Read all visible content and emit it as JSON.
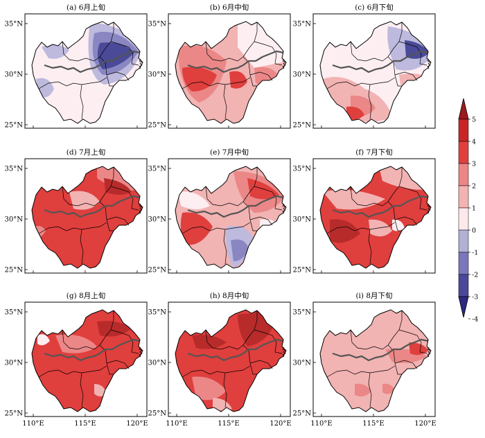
{
  "figure": {
    "panels": [
      {
        "id": "a",
        "title": "(a) 6月上旬"
      },
      {
        "id": "b",
        "title": "(b) 6月中旬"
      },
      {
        "id": "c",
        "title": "(c) 6月下旬"
      },
      {
        "id": "d",
        "title": "(d) 7月上旬"
      },
      {
        "id": "e",
        "title": "(e) 7月中旬"
      },
      {
        "id": "f",
        "title": "(f) 7月下旬"
      },
      {
        "id": "g",
        "title": "(g) 8月上旬"
      },
      {
        "id": "h",
        "title": "(h) 8月中旬"
      },
      {
        "id": "i",
        "title": "(i) 8月下旬"
      }
    ],
    "lat_ticks": [
      "35°N",
      "30°N",
      "25°N"
    ],
    "lon_ticks": [
      "110°E",
      "115°E",
      "120°E"
    ],
    "colorbar": {
      "ticks": [
        "5",
        "4",
        "3",
        "2",
        "1",
        "0",
        "-1",
        "-2",
        "-3",
        "-4"
      ],
      "colors": [
        "#9c1b1b",
        "#c82626",
        "#e0403c",
        "#ec8585",
        "#f4b3b3",
        "#fde9ec",
        "#b3b0d6",
        "#7b77bb",
        "#4b479a",
        "#2e2a7e"
      ]
    },
    "region_colors": {
      "neg_strong": "#4a4a98",
      "neg_mid": "#8a86c2",
      "neg_light": "#bdbade",
      "near_zero": "#fdeef1",
      "pos_light": "#f2b3b3",
      "pos_mid": "#eb8787",
      "pos_strong": "#df3f3d",
      "pos_very": "#b82b2b"
    }
  }
}
